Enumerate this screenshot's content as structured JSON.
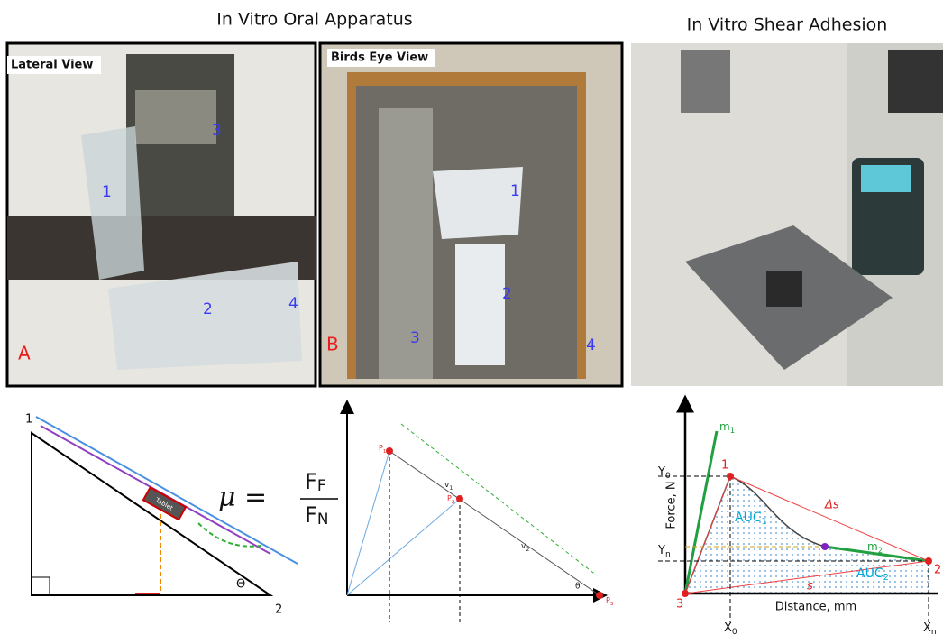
{
  "headings": {
    "oral": "In Vitro Oral Apparatus",
    "shear": "In Vitro Shear Adhesion"
  },
  "photos": [
    {
      "caption": "Lateral View",
      "panel": "A",
      "markers": [
        "1",
        "2",
        "3",
        "4"
      ]
    },
    {
      "caption": "Birds Eye View",
      "panel": "B",
      "markers": [
        "1",
        "2",
        "3",
        "4"
      ]
    }
  ],
  "incline": {
    "vertices": [
      "1",
      "2"
    ],
    "angle": "Θ",
    "tablet": "Tablet",
    "formula": {
      "lhs": "μ =",
      "num": {
        "base": "F",
        "sub": "F"
      },
      "den": {
        "base": "F",
        "sub": "N"
      }
    }
  },
  "vectors": {
    "velocities": [
      {
        "base": "v",
        "sub": "1"
      },
      {
        "base": "v",
        "sub": "2"
      }
    ],
    "angle": "θ",
    "points": [
      {
        "base": "P",
        "sub": "1"
      },
      {
        "base": "P",
        "sub": "2"
      },
      {
        "base": "P",
        "sub": "3"
      }
    ]
  },
  "graph": {
    "y_label": "Force, N",
    "x_label": "Distance, mm",
    "y_ticks": [
      {
        "base": "Y",
        "sub": "0"
      },
      {
        "base": "Y",
        "sub": "n"
      }
    ],
    "x_ticks": [
      {
        "base": "X",
        "sub": "0"
      },
      {
        "base": "X",
        "sub": "n"
      }
    ],
    "slopes": [
      {
        "base": "m",
        "sub": "1"
      },
      {
        "base": "m",
        "sub": "2"
      }
    ],
    "areas": [
      {
        "base": "AUC",
        "sub": "1"
      },
      {
        "base": "AUC",
        "sub": "2"
      }
    ],
    "delta": "Δs",
    "chord": "s",
    "points": [
      "1",
      "2",
      "3"
    ]
  }
}
